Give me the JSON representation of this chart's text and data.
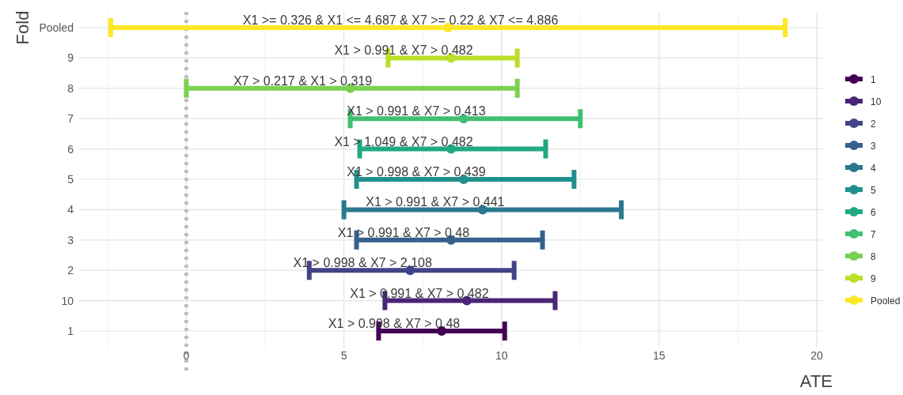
{
  "chart_data": {
    "type": "scatter",
    "orientation": "horizontal",
    "xlabel": "ATE",
    "ylabel": "Fold",
    "categories": [
      "Pooled",
      "9",
      "8",
      "7",
      "6",
      "5",
      "4",
      "3",
      "2",
      "10",
      "1"
    ],
    "xlim": [
      -3.4,
      20.2
    ],
    "xticks": [
      0,
      5,
      10,
      15,
      20
    ],
    "grid": true,
    "legend": "right",
    "marker": "circle",
    "ref_lines": [
      {
        "axis": "x",
        "value": 0,
        "color": "#bfbfbf",
        "line_style": "dotted"
      }
    ],
    "series": [
      {
        "name": "1",
        "color": "#440154",
        "values": [
          null,
          null,
          null,
          null,
          null,
          null,
          null,
          null,
          null,
          null,
          8.1
        ],
        "errors": [
          null,
          null,
          null,
          null,
          null,
          null,
          null,
          null,
          null,
          null,
          [
            6.1,
            10.1
          ]
        ]
      },
      {
        "name": "10",
        "color": "#482576",
        "values": [
          null,
          null,
          null,
          null,
          null,
          null,
          null,
          null,
          null,
          8.9,
          null
        ],
        "errors": [
          null,
          null,
          null,
          null,
          null,
          null,
          null,
          null,
          null,
          [
            6.3,
            11.7
          ],
          null
        ]
      },
      {
        "name": "2",
        "color": "#414487",
        "values": [
          null,
          null,
          null,
          null,
          null,
          null,
          null,
          null,
          7.1,
          null,
          null
        ],
        "errors": [
          null,
          null,
          null,
          null,
          null,
          null,
          null,
          null,
          [
            3.9,
            10.4
          ],
          null,
          null
        ]
      },
      {
        "name": "3",
        "color": "#35608d",
        "values": [
          null,
          null,
          null,
          null,
          null,
          null,
          null,
          8.4,
          null,
          null,
          null
        ],
        "errors": [
          null,
          null,
          null,
          null,
          null,
          null,
          null,
          [
            5.4,
            11.3
          ],
          null,
          null,
          null
        ]
      },
      {
        "name": "4",
        "color": "#2a788e",
        "values": [
          null,
          null,
          null,
          null,
          null,
          null,
          9.4,
          null,
          null,
          null,
          null
        ],
        "errors": [
          null,
          null,
          null,
          null,
          null,
          null,
          [
            5.0,
            13.8
          ],
          null,
          null,
          null,
          null
        ]
      },
      {
        "name": "5",
        "color": "#21908d",
        "values": [
          null,
          null,
          null,
          null,
          null,
          8.8,
          null,
          null,
          null,
          null,
          null
        ],
        "errors": [
          null,
          null,
          null,
          null,
          null,
          [
            5.4,
            12.3
          ],
          null,
          null,
          null,
          null,
          null
        ]
      },
      {
        "name": "6",
        "color": "#22a884",
        "values": [
          null,
          null,
          null,
          null,
          8.4,
          null,
          null,
          null,
          null,
          null,
          null
        ],
        "errors": [
          null,
          null,
          null,
          null,
          [
            5.5,
            11.4
          ],
          null,
          null,
          null,
          null,
          null,
          null
        ]
      },
      {
        "name": "7",
        "color": "#43bf71",
        "values": [
          null,
          null,
          null,
          8.8,
          null,
          null,
          null,
          null,
          null,
          null,
          null
        ],
        "errors": [
          null,
          null,
          null,
          [
            5.2,
            12.5
          ],
          null,
          null,
          null,
          null,
          null,
          null,
          null
        ]
      },
      {
        "name": "8",
        "color": "#7ad151",
        "values": [
          null,
          null,
          5.2,
          null,
          null,
          null,
          null,
          null,
          null,
          null,
          null
        ],
        "errors": [
          null,
          null,
          [
            0.0,
            10.5
          ],
          null,
          null,
          null,
          null,
          null,
          null,
          null,
          null
        ]
      },
      {
        "name": "9",
        "color": "#bbdf27",
        "values": [
          null,
          8.4,
          null,
          null,
          null,
          null,
          null,
          null,
          null,
          null,
          null
        ],
        "errors": [
          null,
          [
            6.4,
            10.5
          ],
          null,
          null,
          null,
          null,
          null,
          null,
          null,
          null,
          null
        ]
      },
      {
        "name": "Pooled",
        "color": "#fde725",
        "values": [
          8.3,
          null,
          null,
          null,
          null,
          null,
          null,
          null,
          null,
          null,
          null
        ],
        "errors": [
          [
            -2.4,
            19.0
          ],
          null,
          null,
          null,
          null,
          null,
          null,
          null,
          null,
          null,
          null
        ]
      }
    ],
    "annotations": [
      "X1 >= 0.326 & X1 <= 4.687 & X7 >= 0.22 & X7 <= 4.886",
      "X1 > 0.991 & X7 > 0.482",
      "X7 > 0.217 & X1 > 0.319",
      "X1 > 0.991 & X7 > 0.413",
      "X1 > 1.049 & X7 > 0.482",
      "X1 > 0.998 & X7 > 0.439",
      "X1 > 0.991 & X7 > 0.441",
      "X1 > 0.991 & X7 > 0.48",
      "X1 > 0.998 & X7 > 2.108",
      "X1 > 0.991 & X7 > 0.482",
      "X1 > 0.998 & X7 > 0.48"
    ]
  }
}
